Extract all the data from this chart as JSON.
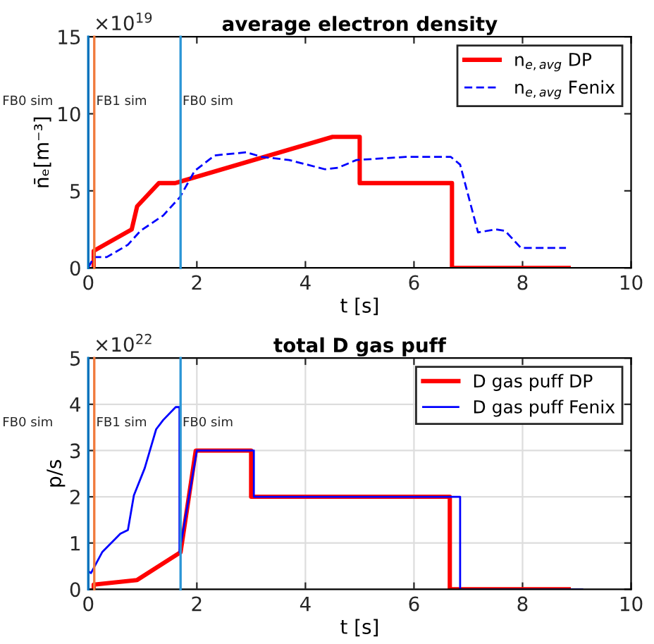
{
  "chart_data": [
    {
      "type": "line",
      "title": "average electron density",
      "xlabel": "t [s]",
      "ylabel": "n̄ₑ[m⁻³]",
      "annotations": [
        "×10$^{19}$"
      ],
      "xlim": [
        0,
        10
      ],
      "xticks": [
        0,
        2,
        4,
        6,
        8,
        10
      ],
      "ylim": [
        0,
        15
      ],
      "yticks": [
        0,
        5,
        10,
        15
      ],
      "grid": false,
      "legend": "top right",
      "ref_lines": [
        {
          "axis": "x",
          "value": 0,
          "label": "FB0 sim",
          "color": "#0072bd"
        },
        {
          "axis": "x",
          "value": 0.11,
          "label": "FB1 sim",
          "color": "#f07a3c"
        },
        {
          "axis": "x",
          "value": 1.7,
          "label": "FB0 sim",
          "color": "#2b95d6"
        }
      ],
      "series": [
        {
          "name": "n$_{e,avg}$ DP",
          "color": "#ff0000",
          "line_style": "solid",
          "x": [
            0.1,
            0.1,
            0.3,
            0.8,
            0.9,
            1.3,
            1.6,
            4.5,
            5.0,
            5.0,
            6.7,
            6.7,
            8.85
          ],
          "values": [
            0,
            1.1,
            1.5,
            2.5,
            4.0,
            5.5,
            5.5,
            8.5,
            8.5,
            5.5,
            5.5,
            0,
            0
          ]
        },
        {
          "name": "n$_{e,avg}$ Fenix",
          "color": "#0000ff",
          "line_style": "dashed",
          "x": [
            0,
            0.1,
            0.34,
            0.73,
            0.96,
            1.38,
            1.69,
            1.96,
            2.33,
            2.91,
            3.2,
            3.7,
            4.36,
            4.6,
            4.94,
            5.85,
            6.68,
            6.85,
            7.18,
            7.5,
            7.68,
            7.97,
            8.8
          ],
          "values": [
            0,
            0.7,
            0.7,
            1.5,
            2.4,
            3.4,
            4.6,
            6.3,
            7.3,
            7.5,
            7.2,
            7.0,
            6.4,
            6.5,
            7.0,
            7.2,
            7.2,
            6.7,
            2.3,
            2.5,
            2.4,
            1.3,
            1.3
          ]
        }
      ]
    },
    {
      "type": "line",
      "title": "total D gas puff",
      "xlabel": "t [s]",
      "ylabel": "p/s",
      "annotations": [
        "×10$^{22}$"
      ],
      "xlim": [
        0,
        10
      ],
      "xticks": [
        0,
        2,
        4,
        6,
        8,
        10
      ],
      "ylim": [
        0,
        5
      ],
      "yticks": [
        0,
        1,
        2,
        3,
        4,
        5
      ],
      "grid": true,
      "legend": "top right",
      "ref_lines": [
        {
          "axis": "x",
          "value": 0,
          "label": "FB0 sim",
          "color": "#0072bd"
        },
        {
          "axis": "x",
          "value": 0.11,
          "label": "FB1 sim",
          "color": "#f07a3c"
        },
        {
          "axis": "x",
          "value": 1.7,
          "label": "FB0 sim",
          "color": "#2b95d6"
        }
      ],
      "series": [
        {
          "name": "D gas puff DP",
          "color": "#ff0000",
          "line_style": "solid",
          "x": [
            0.1,
            0.1,
            0.9,
            1.7,
            1.98,
            3.0,
            3.0,
            6.66,
            6.66,
            8.85
          ],
          "values": [
            0,
            0.1,
            0.2,
            0.8,
            3.0,
            3.0,
            2.0,
            2.0,
            0,
            0
          ]
        },
        {
          "name": "D gas puff Fenix",
          "color": "#0000ff",
          "line_style": "solid",
          "x": [
            0,
            0,
            0.05,
            0.26,
            0.59,
            0.73,
            0.84,
            1.04,
            1.25,
            1.38,
            1.61,
            1.68,
            1.68,
            2.0,
            3.05,
            3.05,
            6.85,
            6.85,
            9.1
          ],
          "values": [
            0,
            0.39,
            0.35,
            0.81,
            1.2,
            1.28,
            2.03,
            2.62,
            3.46,
            3.66,
            3.94,
            3.94,
            0.8,
            3.0,
            3.0,
            2.0,
            2.0,
            0,
            0
          ]
        }
      ]
    }
  ]
}
